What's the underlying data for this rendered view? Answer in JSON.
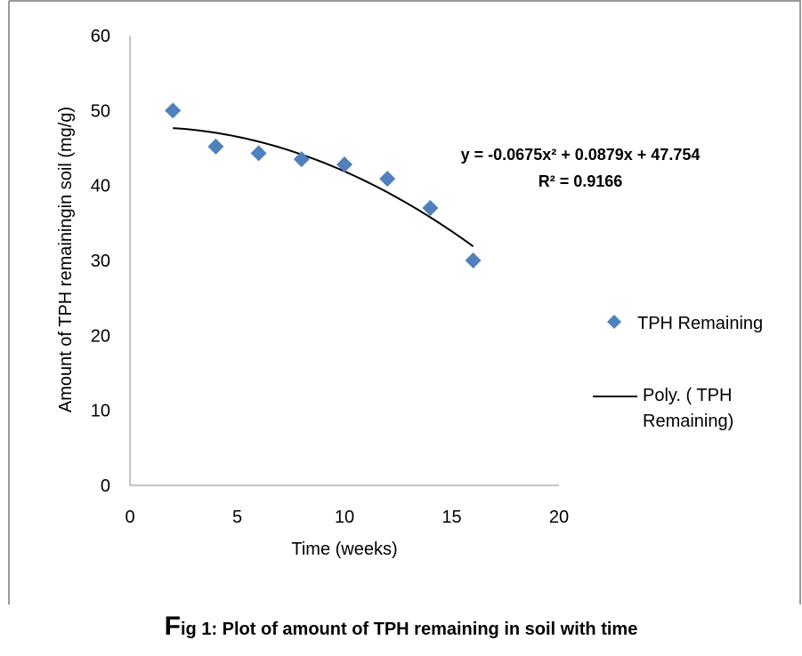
{
  "chart_data": {
    "type": "scatter",
    "xlabel": "Time  (weeks)",
    "ylabel": "Amount of TPH remainingin soil (mg/g)",
    "xlim": [
      0,
      20
    ],
    "ylim": [
      0,
      60
    ],
    "x_ticks": [
      "0",
      "5",
      "10",
      "15",
      "20"
    ],
    "y_ticks": [
      "0",
      "10",
      "20",
      "30",
      "40",
      "50",
      "60"
    ],
    "grid": false,
    "legend_position": "right",
    "series": [
      {
        "name": "TPH Remaining",
        "marker": "diamond",
        "color": "#4f81bd",
        "x": [
          2,
          4,
          6,
          8,
          10,
          12,
          14,
          16
        ],
        "y": [
          50,
          45.2,
          44.3,
          43.5,
          42.8,
          40.9,
          37.0,
          30.0
        ]
      }
    ],
    "trendline": {
      "name": "Poly. ( TPH Remaining)",
      "name_line1": "Poly. ( TPH",
      "name_line2": "Remaining)",
      "color": "#000000",
      "coefficients": [
        -0.0675,
        0.0879,
        47.754
      ],
      "x_range": [
        2,
        16
      ],
      "equation_label": "y = -0.0675x² + 0.0879x + 47.754",
      "r2_label": "R² = 0.9166"
    }
  },
  "caption": {
    "first_letter": "F",
    "rest": "ig 1: Plot of amount of  TPH  remaining in soil  with time"
  }
}
